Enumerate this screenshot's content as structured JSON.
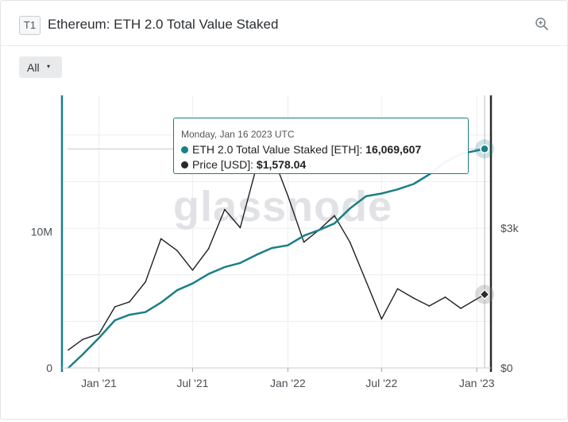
{
  "header": {
    "tier_badge": "T1",
    "title": "Ethereum: ETH 2.0 Total Value Staked",
    "zoom_icon": "zoom-in-icon"
  },
  "controls": {
    "range_label": "All",
    "range_caret": "▾"
  },
  "watermark": "glassnode",
  "tooltip": {
    "date": "Monday, Jan 16 2023 UTC",
    "rows": [
      {
        "label": "ETH 2.0 Total Value Staked [ETH]: ",
        "value": "16,069,607",
        "color": "#1a7f88"
      },
      {
        "label": "Price [USD]: ",
        "value": "$1,578.04",
        "color": "#2a2a2a"
      }
    ]
  },
  "chart_data": {
    "type": "line",
    "x": [
      "2020-11-03",
      "2020-12-01",
      "2021-01-01",
      "2021-02-01",
      "2021-03-01",
      "2021-04-01",
      "2021-05-01",
      "2021-06-01",
      "2021-07-01",
      "2021-08-01",
      "2021-09-01",
      "2021-10-01",
      "2021-11-01",
      "2021-12-01",
      "2022-01-01",
      "2022-02-01",
      "2022-03-01",
      "2022-04-01",
      "2022-05-01",
      "2022-06-01",
      "2022-07-01",
      "2022-08-01",
      "2022-09-01",
      "2022-10-01",
      "2022-11-01",
      "2022-12-01",
      "2023-01-16"
    ],
    "series": [
      {
        "name": "ETH 2.0 Total Value Staked [ETH]",
        "axis": "left",
        "color": "#1a7f88",
        "values": [
          0,
          1000000,
          2200000,
          3500000,
          3900000,
          4100000,
          4800000,
          5700000,
          6200000,
          6900000,
          7400000,
          7700000,
          8300000,
          8800000,
          9000000,
          9700000,
          10100000,
          10600000,
          11700000,
          12600000,
          12800000,
          13100000,
          13500000,
          14200000,
          15100000,
          15700000,
          16069607
        ]
      },
      {
        "name": "Price [USD]",
        "axis": "right",
        "color": "#1f1f1f",
        "values": [
          387,
          612,
          730,
          1314,
          1417,
          1846,
          2773,
          2520,
          2100,
          2560,
          3400,
          3011,
          4300,
          4600,
          3700,
          2700,
          2950,
          3270,
          2700,
          1860,
          1050,
          1700,
          1500,
          1330,
          1520,
          1280,
          1578
        ]
      }
    ],
    "x_ticks": [
      "Jan '21",
      "Jul '21",
      "Jan '22",
      "Jul '22",
      "Jan '23"
    ],
    "y_left": {
      "ticks": [
        "0",
        "10M"
      ],
      "tick_values": [
        0,
        10000000
      ],
      "lim": [
        0,
        20000000
      ]
    },
    "y_right": {
      "ticks": [
        "$0",
        "$3k"
      ],
      "tick_values": [
        0,
        3000
      ],
      "lim": [
        0,
        5850
      ]
    },
    "grid": true
  }
}
